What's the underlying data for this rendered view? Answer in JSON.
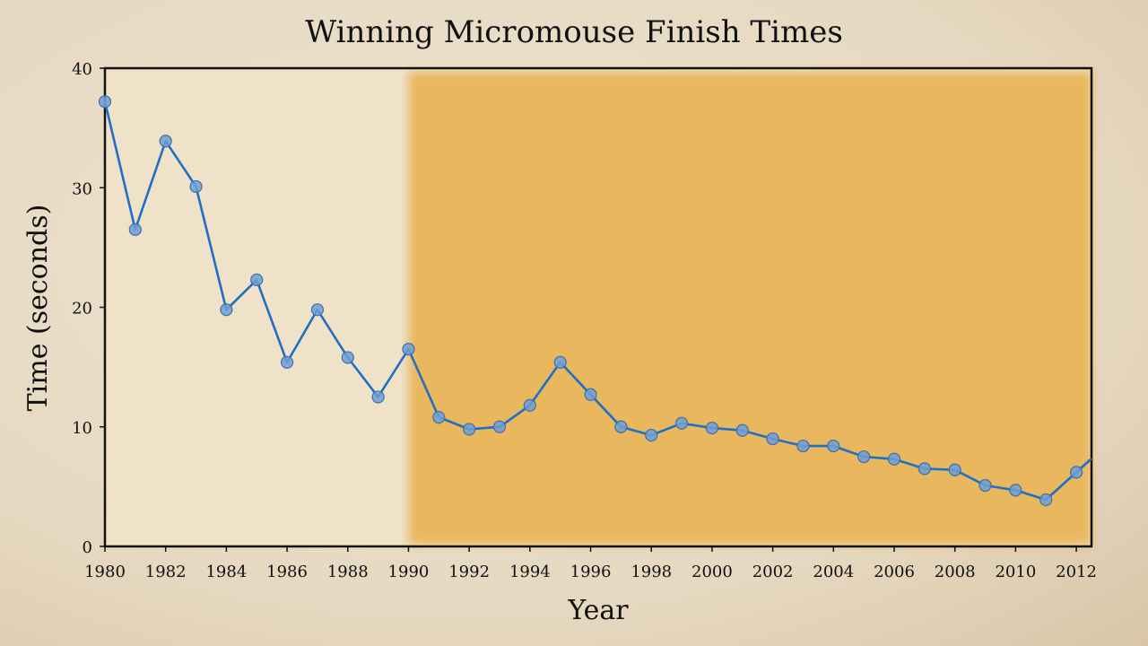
{
  "chart_data": {
    "type": "line",
    "title": "Winning Micromouse Finish Times",
    "xlabel": "Year",
    "ylabel": "Time (seconds)",
    "xlim": [
      1980,
      2012.5
    ],
    "ylim": [
      0,
      40
    ],
    "x_ticks": [
      1980,
      1982,
      1984,
      1986,
      1988,
      1990,
      1992,
      1994,
      1996,
      1998,
      2000,
      2002,
      2004,
      2006,
      2008,
      2010,
      2012
    ],
    "y_ticks": [
      0,
      10,
      20,
      30,
      40
    ],
    "highlight_region": {
      "x_start": 1990,
      "x_end": 2012.5,
      "color": "#e8a93a"
    },
    "line_color": "#1f6fc4",
    "series": [
      {
        "x": [
          1980,
          1981,
          1982,
          1983,
          1984,
          1985,
          1986,
          1987,
          1988,
          1989,
          1990,
          1991,
          1992,
          1993,
          1994,
          1995,
          1996,
          1997,
          1998,
          1999,
          2000,
          2001,
          2002,
          2003,
          2004,
          2005,
          2006,
          2007,
          2008,
          2009,
          2010,
          2011,
          2012
        ],
        "y": [
          37.2,
          26.5,
          33.9,
          30.1,
          19.8,
          22.3,
          15.4,
          19.8,
          15.8,
          12.5,
          16.5,
          10.8,
          9.8,
          10.0,
          11.8,
          15.4,
          12.7,
          10.0,
          9.3,
          10.3,
          9.9,
          9.7,
          9.0,
          8.4,
          8.4,
          7.5,
          7.3,
          6.5,
          6.4,
          5.1,
          4.7,
          3.9,
          6.2
        ]
      }
    ],
    "grid": false,
    "legend": "none"
  }
}
